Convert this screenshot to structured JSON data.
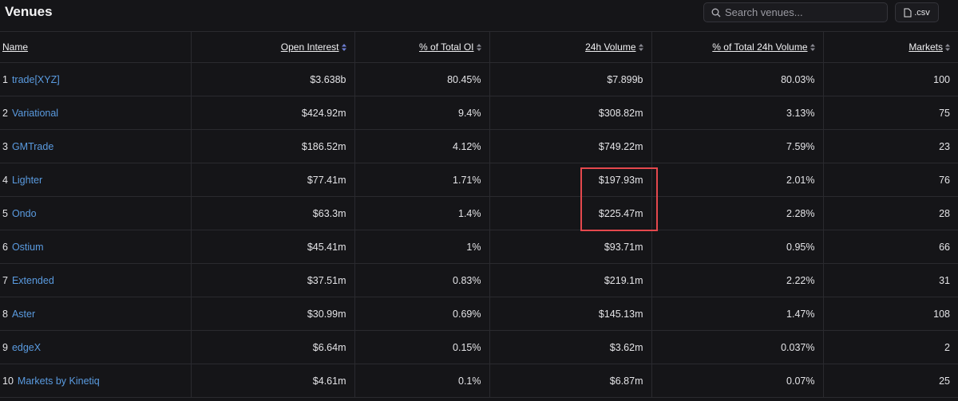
{
  "header": {
    "title": "Venues",
    "search_placeholder": "Search venues...",
    "export_button": ".csv"
  },
  "table": {
    "columns": [
      "Name",
      "Open Interest",
      "% of Total OI",
      "24h Volume",
      "% of Total 24h Volume",
      "Markets"
    ],
    "rows": [
      [
        "1",
        "trade[XYZ]",
        "$3.638b",
        "80.45%",
        "$7.899b",
        "80.03%",
        "100"
      ],
      [
        "2",
        "Variational",
        "$424.92m",
        "9.4%",
        "$308.82m",
        "3.13%",
        "75"
      ],
      [
        "3",
        "GMTrade",
        "$186.52m",
        "4.12%",
        "$749.22m",
        "7.59%",
        "23"
      ],
      [
        "4",
        "Lighter",
        "$77.41m",
        "1.71%",
        "$197.93m",
        "2.01%",
        "76"
      ],
      [
        "5",
        "Ondo",
        "$63.3m",
        "1.4%",
        "$225.47m",
        "2.28%",
        "28"
      ],
      [
        "6",
        "Ostium",
        "$45.41m",
        "1%",
        "$93.71m",
        "0.95%",
        "66"
      ],
      [
        "7",
        "Extended",
        "$37.51m",
        "0.83%",
        "$219.1m",
        "2.22%",
        "31"
      ],
      [
        "8",
        "Aster",
        "$30.99m",
        "0.69%",
        "$145.13m",
        "1.47%",
        "108"
      ],
      [
        "9",
        "edgeX",
        "$6.64m",
        "0.15%",
        "$3.62m",
        "0.037%",
        "2"
      ],
      [
        "10",
        "Markets by Kinetiq",
        "$4.61m",
        "0.1%",
        "$6.87m",
        "0.07%",
        "25"
      ]
    ]
  }
}
